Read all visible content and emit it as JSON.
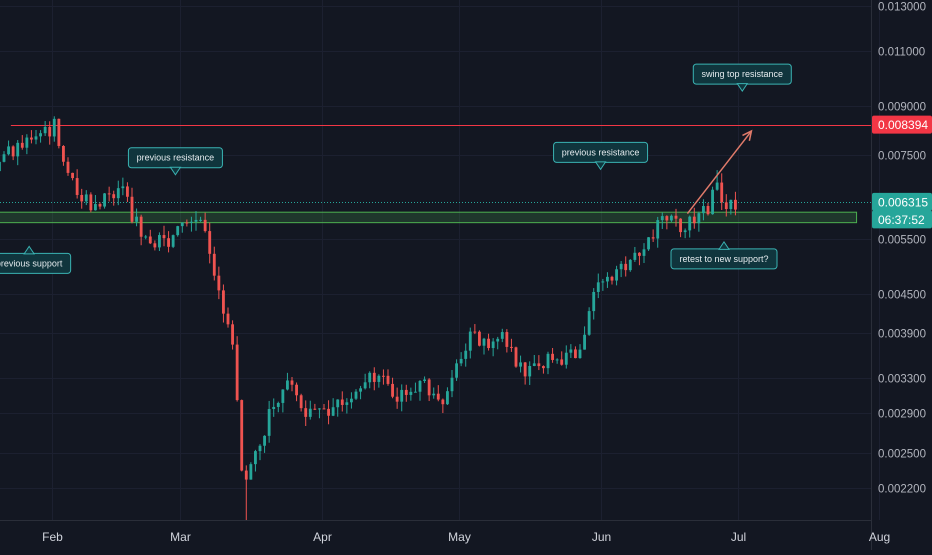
{
  "chart_data": {
    "type": "candlestick",
    "title": "",
    "x_axis": {
      "labels": [
        "Feb",
        "Mar",
        "Apr",
        "May",
        "Jun",
        "Jul",
        "Aug"
      ]
    },
    "y_axis": {
      "scale": "log",
      "range": [
        0.00195,
        0.0133
      ],
      "ticks": [
        "0.013000",
        "0.011000",
        "0.009000",
        "0.007500",
        "0.005500",
        "0.004500",
        "0.003900",
        "0.003300",
        "0.002900",
        "0.002500",
        "0.002200"
      ]
    },
    "price_badges": [
      {
        "label": "0.008394",
        "price": 0.008394,
        "color": "#f23645"
      },
      {
        "label": "0.006315",
        "price": 0.006315,
        "color": "#26a69a"
      },
      {
        "label": "06:37:52",
        "price": 0.00592,
        "color": "#26a69a"
      }
    ],
    "horizontal_lines": [
      {
        "name": "resistance-line",
        "price": 0.008394,
        "color": "#f23645"
      },
      {
        "name": "current-price-line",
        "price": 0.006315,
        "color": "#26a69a",
        "dashed": true
      }
    ],
    "support_zone": {
      "from_date": "2021-01-12",
      "to_date": "2021-07-27",
      "price_high": 0.00608,
      "price_low": 0.00585,
      "color": "#4caf50"
    },
    "projection_arrow": {
      "from_date": "2021-06-20",
      "from_price": 0.00605,
      "to_date": "2021-07-04",
      "to_price": 0.0082,
      "color": "#e07a6a"
    },
    "annotations": [
      {
        "text": "swing top resistance",
        "date": "2021-07-02",
        "price": 0.0095,
        "pointer": "down"
      },
      {
        "text": "previous resistance",
        "date": "2021-02-28",
        "price": 0.00698,
        "pointer": "down"
      },
      {
        "text": "previous resistance",
        "date": "2021-06-01",
        "price": 0.00712,
        "pointer": "down"
      },
      {
        "text": "previous support",
        "date": "2021-01-27",
        "price": 0.00536,
        "pointer": "up"
      },
      {
        "text": "retest to new support?",
        "date": "2021-06-28",
        "price": 0.00545,
        "pointer": "up"
      }
    ],
    "candles_start_date": "2020-12-21",
    "candles_interval_hours": 24,
    "anchors": [
      [
        "2020-12-21",
        0.00555
      ],
      [
        "2020-12-26",
        0.00535
      ],
      [
        "2020-12-31",
        0.00525
      ],
      [
        "2021-01-06",
        0.0058
      ],
      [
        "2021-01-12",
        0.0061
      ],
      [
        "2021-01-17",
        0.0068
      ],
      [
        "2021-01-23",
        0.0075
      ],
      [
        "2021-01-28",
        0.0079
      ],
      [
        "2021-02-02",
        0.0083
      ],
      [
        "2021-02-03",
        0.0076
      ],
      [
        "2021-02-07",
        0.0064
      ],
      [
        "2021-02-12",
        0.0063
      ],
      [
        "2021-02-17",
        0.0065
      ],
      [
        "2021-02-22",
        0.0054
      ],
      [
        "2021-02-27",
        0.0055
      ],
      [
        "2021-03-04",
        0.0058
      ],
      [
        "2021-03-07",
        0.0057
      ],
      [
        "2021-03-10",
        0.0045
      ],
      [
        "2021-03-13",
        0.0038
      ],
      [
        "2021-03-15",
        0.0023
      ],
      [
        "2021-03-18",
        0.00245
      ],
      [
        "2021-03-21",
        0.0029
      ],
      [
        "2021-03-25",
        0.0033
      ],
      [
        "2021-03-29",
        0.0029
      ],
      [
        "2021-04-05",
        0.003
      ],
      [
        "2021-04-12",
        0.0034
      ],
      [
        "2021-04-18",
        0.0031
      ],
      [
        "2021-04-24",
        0.0032
      ],
      [
        "2021-04-28",
        0.003
      ],
      [
        "2021-05-04",
        0.0038
      ],
      [
        "2021-05-11",
        0.0038
      ],
      [
        "2021-05-16",
        0.0034
      ],
      [
        "2021-05-21",
        0.0035
      ],
      [
        "2021-05-27",
        0.0036
      ],
      [
        "2021-06-01",
        0.0046
      ],
      [
        "2021-06-06",
        0.005
      ],
      [
        "2021-06-11",
        0.0054
      ],
      [
        "2021-06-16",
        0.006
      ],
      [
        "2021-06-20",
        0.0058
      ],
      [
        "2021-06-25",
        0.0062
      ],
      [
        "2021-06-27",
        0.0066
      ],
      [
        "2021-06-29",
        0.0063
      ],
      [
        "2021-06-30",
        0.0063
      ]
    ],
    "wick_extremes": [
      [
        "2021-03-15",
        0.00195
      ],
      [
        "2021-06-26",
        0.0071
      ],
      [
        "2021-02-02",
        0.0084
      ],
      [
        "2021-04-27",
        0.0029
      ]
    ]
  }
}
